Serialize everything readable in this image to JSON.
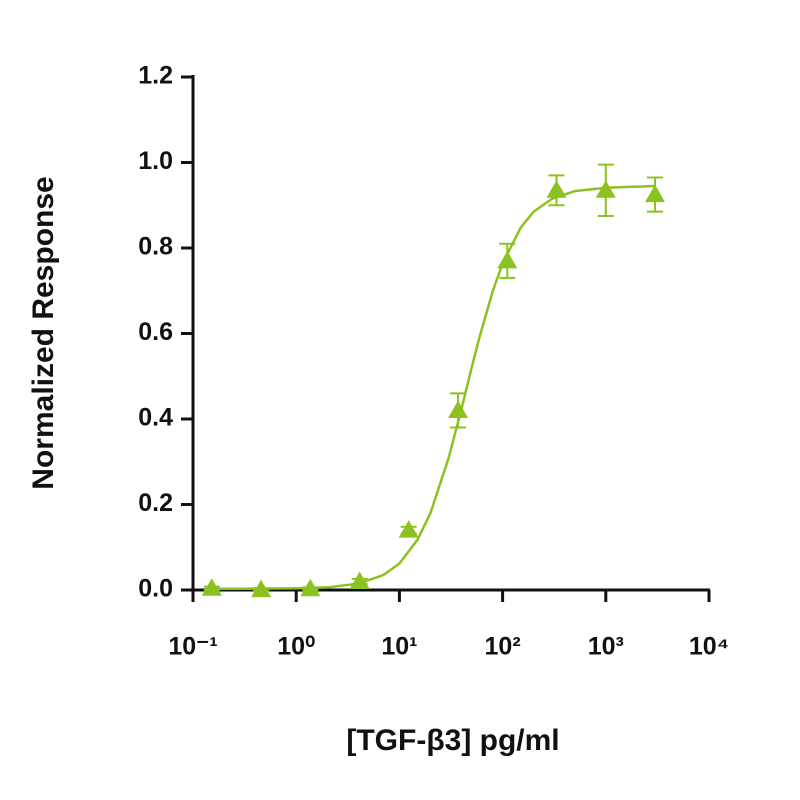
{
  "chart_data": {
    "type": "scatter",
    "x_label": "[TGF-β3] pg/ml",
    "y_label": "Normalized Response",
    "x": [
      0.152,
      0.457,
      1.37,
      4.12,
      12.3,
      37,
      111,
      333,
      1000,
      3000
    ],
    "values": [
      0.004,
      0.001,
      0.003,
      0.02,
      0.14,
      0.42,
      0.77,
      0.935,
      0.935,
      0.925
    ],
    "errors": [
      0.004,
      0.003,
      0.003,
      0.006,
      0.008,
      0.04,
      0.04,
      0.035,
      0.06,
      0.04
    ],
    "color": "#8cc21f",
    "fit": {
      "x": [
        0.15,
        0.3,
        1,
        2,
        4,
        7,
        10,
        15,
        20,
        30,
        40,
        50,
        60,
        80,
        100,
        150,
        200,
        300,
        500,
        1000,
        3000
      ],
      "values": [
        0.003,
        0.003,
        0.004,
        0.006,
        0.015,
        0.035,
        0.062,
        0.118,
        0.18,
        0.309,
        0.424,
        0.519,
        0.593,
        0.698,
        0.764,
        0.848,
        0.885,
        0.915,
        0.933,
        0.941,
        0.945
      ]
    },
    "xscale": "log",
    "xlim": [
      0.1,
      10000
    ],
    "xticks": [
      {
        "value": 0.1,
        "label": "10⁻¹"
      },
      {
        "value": 1,
        "label": "10⁰"
      },
      {
        "value": 10,
        "label": "10¹"
      },
      {
        "value": 100,
        "label": "10²"
      },
      {
        "value": 1000,
        "label": "10³"
      },
      {
        "value": 10000,
        "label": "10⁴"
      }
    ],
    "ylim": [
      0,
      1.2
    ],
    "yticks": [
      {
        "value": 0,
        "label": "0.0"
      },
      0.2,
      0.4,
      0.6,
      0.8,
      {
        "value": 1,
        "label": "1.0"
      },
      1.2
    ],
    "grid": false
  }
}
